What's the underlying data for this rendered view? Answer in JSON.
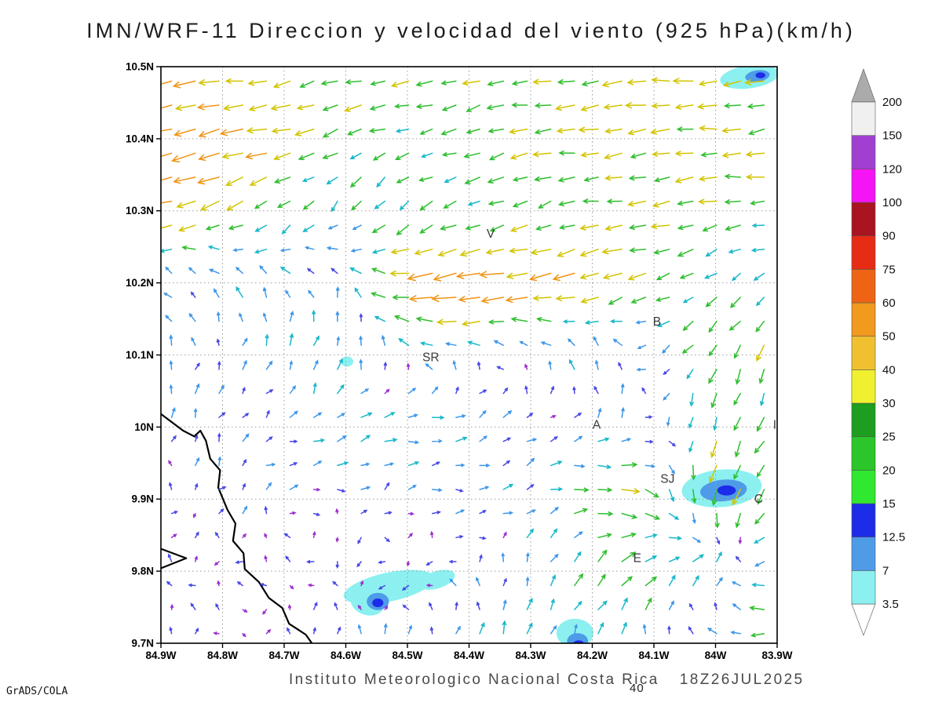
{
  "title": "IMN/WRF-11 Direccion y velocidad del viento (925 hPa)(km/h)",
  "footer": {
    "institute": "Instituto Meteorologico Nacional Costa Rica",
    "datetime": "18Z26JUL2025",
    "vector_reference": "40",
    "credit": "GrADS/COLA"
  },
  "chart_data": {
    "type": "scatter",
    "subtype": "wind-vector-field",
    "title": "IMN/WRF-11 Direccion y velocidad del viento (925 hPa)(km/h)",
    "level": "925 hPa",
    "units": "km/h",
    "grid": "dotted",
    "x_range": [
      -84.9,
      -83.9
    ],
    "y_range": [
      9.7,
      10.5
    ],
    "x_ticks": [
      -84.9,
      -84.8,
      -84.7,
      -84.6,
      -84.5,
      -84.4,
      -84.3,
      -84.2,
      -84.1,
      -84.0,
      -83.9
    ],
    "x_tick_labels": [
      "84.9W",
      "84.8W",
      "84.7W",
      "84.6W",
      "84.5W",
      "84.4W",
      "84.3W",
      "84.2W",
      "84.1W",
      "84W",
      "83.9W"
    ],
    "y_ticks": [
      9.7,
      9.8,
      9.9,
      10.0,
      10.1,
      10.2,
      10.3,
      10.4,
      10.5
    ],
    "y_tick_labels": [
      "9.7N",
      "9.8N",
      "9.9N",
      "10N",
      "10.1N",
      "10.2N",
      "10.3N",
      "10.4N",
      "10.5N"
    ],
    "stations": [
      {
        "label": "V",
        "lon": -84.365,
        "lat": 10.268
      },
      {
        "label": "B",
        "lon": -84.095,
        "lat": 10.146
      },
      {
        "label": "SR",
        "lon": -84.462,
        "lat": 10.097
      },
      {
        "label": "A",
        "lon": -84.193,
        "lat": 10.003
      },
      {
        "label": "SJ",
        "lon": -84.078,
        "lat": 9.928
      },
      {
        "label": "C",
        "lon": -83.93,
        "lat": 9.9
      },
      {
        "label": "E",
        "lon": -84.127,
        "lat": 9.818
      },
      {
        "label": "I",
        "lon": -83.904,
        "lat": 10.003
      }
    ],
    "colorbar": {
      "levels": [
        "3.5",
        "7",
        "12.5",
        "15",
        "20",
        "25",
        "30",
        "40",
        "50",
        "60",
        "75",
        "90",
        "100",
        "120",
        "150",
        "200"
      ],
      "band_colors": [
        "#8CF0F0",
        "#4E9BE8",
        "#1C2CE8",
        "#30E830",
        "#2AC62A",
        "#1E9E1E",
        "#F0F030",
        "#F0C030",
        "#F09A1E",
        "#EE6414",
        "#E62C14",
        "#A81420",
        "#F514F5",
        "#A040D0",
        "#F0F0F0"
      ],
      "under_color": "#FFFFFF",
      "over_color": "#ABABAB"
    },
    "arrow_palette": {
      "thresholds": [
        4.5,
        9,
        14,
        19,
        27,
        36,
        46
      ],
      "colors": [
        "#9B30D0",
        "#4848E8",
        "#3E97E8",
        "#18B8C8",
        "#2EBE2E",
        "#D2C400",
        "#F09414",
        "#E82814"
      ]
    },
    "arrow_density": {
      "cols": 26,
      "rows": 24
    },
    "vector_scale_kmh": 40,
    "wind_grid": {
      "lons": [
        -84.9,
        -84.75,
        -84.6,
        -84.45,
        -84.3,
        -84.15,
        -84.0,
        -83.9
      ],
      "lats": [
        9.7,
        9.8,
        9.9,
        10.0,
        10.1,
        10.2,
        10.3,
        10.4,
        10.5
      ],
      "u": [
        [
          -1,
          -2,
          3,
          5,
          3,
          5,
          -10,
          -25
        ],
        [
          -1,
          -2,
          -6,
          -8,
          5,
          16,
          10,
          -20
        ],
        [
          1,
          2,
          8,
          10,
          8,
          32,
          -5,
          -15
        ],
        [
          2,
          8,
          12,
          15,
          10,
          5,
          -8,
          -10
        ],
        [
          -3,
          2,
          5,
          -10,
          -8,
          -5,
          -10,
          -8
        ],
        [
          -6,
          -6,
          -6,
          -50,
          -38,
          -30,
          -16,
          -12
        ],
        [
          -38,
          -22,
          -10,
          -14,
          -22,
          -26,
          -24,
          -20
        ],
        [
          -42,
          -35,
          -22,
          -20,
          -25,
          -28,
          -30,
          -28
        ],
        [
          -40,
          -30,
          -22,
          -25,
          -28,
          -30,
          -28,
          -30
        ]
      ],
      "v": [
        [
          2,
          1,
          10,
          12,
          15,
          12,
          5,
          -3
        ],
        [
          3,
          2,
          -3,
          -3,
          14,
          16,
          14,
          -5
        ],
        [
          5,
          4,
          2,
          2,
          4,
          -6,
          -30,
          -15
        ],
        [
          8,
          6,
          4,
          3,
          5,
          8,
          -20,
          -20
        ],
        [
          10,
          10,
          15,
          5,
          8,
          10,
          -22,
          -24
        ],
        [
          8,
          10,
          12,
          -6,
          -8,
          -10,
          -10,
          -6
        ],
        [
          -12,
          -12,
          -14,
          -12,
          -6,
          -4,
          -4,
          -2
        ],
        [
          -10,
          -8,
          -8,
          -6,
          -5,
          -4,
          -3,
          -3
        ],
        [
          -6,
          -4,
          -6,
          -5,
          -4,
          -3,
          -2,
          -3
        ]
      ]
    },
    "coastline": [
      [
        [
          -84.9,
          10.018
        ],
        [
          -84.864,
          9.995
        ],
        [
          -84.846,
          9.987
        ],
        [
          -84.836,
          9.995
        ],
        [
          -84.827,
          9.981
        ],
        [
          -84.82,
          9.956
        ],
        [
          -84.804,
          9.94
        ],
        [
          -84.807,
          9.916
        ],
        [
          -84.792,
          9.885
        ],
        [
          -84.779,
          9.866
        ],
        [
          -84.783,
          9.842
        ],
        [
          -84.766,
          9.825
        ],
        [
          -84.764,
          9.803
        ],
        [
          -84.741,
          9.785
        ],
        [
          -84.725,
          9.763
        ],
        [
          -84.703,
          9.749
        ],
        [
          -84.692,
          9.727
        ],
        [
          -84.665,
          9.712
        ],
        [
          -84.655,
          9.7
        ]
      ],
      [
        [
          -84.9,
          9.831
        ],
        [
          -84.859,
          9.818
        ],
        [
          -84.9,
          9.804
        ]
      ]
    ],
    "shaded_regions": [
      {
        "lon": -83.945,
        "lat": 10.486,
        "rx": 0.048,
        "ry": 0.016,
        "rot": -8,
        "color": "#8CF0F0"
      },
      {
        "lon": -83.932,
        "lat": 10.487,
        "rx": 0.02,
        "ry": 0.008,
        "rot": -8,
        "color": "#4E9BE8"
      },
      {
        "lon": -83.927,
        "lat": 10.488,
        "rx": 0.008,
        "ry": 0.004,
        "rot": 0,
        "color": "#1C2CE8"
      },
      {
        "lon": -84.598,
        "lat": 10.091,
        "rx": 0.01,
        "ry": 0.007,
        "rot": 0,
        "color": "#8CF0F0"
      },
      {
        "lon": -83.99,
        "lat": 9.915,
        "rx": 0.065,
        "ry": 0.026,
        "rot": -5,
        "color": "#8CF0F0"
      },
      {
        "lon": -83.987,
        "lat": 9.912,
        "rx": 0.038,
        "ry": 0.015,
        "rot": -5,
        "color": "#4E9BE8"
      },
      {
        "lon": -83.982,
        "lat": 9.912,
        "rx": 0.015,
        "ry": 0.007,
        "rot": 0,
        "color": "#1C2CE8"
      },
      {
        "lon": -84.53,
        "lat": 9.778,
        "rx": 0.075,
        "ry": 0.02,
        "rot": -12,
        "color": "#8CF0F0"
      },
      {
        "lon": -84.565,
        "lat": 9.757,
        "rx": 0.028,
        "ry": 0.018,
        "rot": 18,
        "color": "#8CF0F0"
      },
      {
        "lon": -84.452,
        "lat": 9.788,
        "rx": 0.03,
        "ry": 0.012,
        "rot": -18,
        "color": "#8CF0F0"
      },
      {
        "lon": -84.548,
        "lat": 9.758,
        "rx": 0.018,
        "ry": 0.012,
        "rot": 0,
        "color": "#4E9BE8"
      },
      {
        "lon": -84.548,
        "lat": 9.756,
        "rx": 0.009,
        "ry": 0.006,
        "rot": 0,
        "color": "#1C2CE8"
      },
      {
        "lon": -84.228,
        "lat": 9.714,
        "rx": 0.03,
        "ry": 0.02,
        "rot": 0,
        "color": "#8CF0F0"
      },
      {
        "lon": -84.224,
        "lat": 9.703,
        "rx": 0.017,
        "ry": 0.011,
        "rot": 0,
        "color": "#4E9BE8"
      },
      {
        "lon": -84.222,
        "lat": 9.699,
        "rx": 0.009,
        "ry": 0.005,
        "rot": 0,
        "color": "#1C2CE8"
      }
    ]
  }
}
